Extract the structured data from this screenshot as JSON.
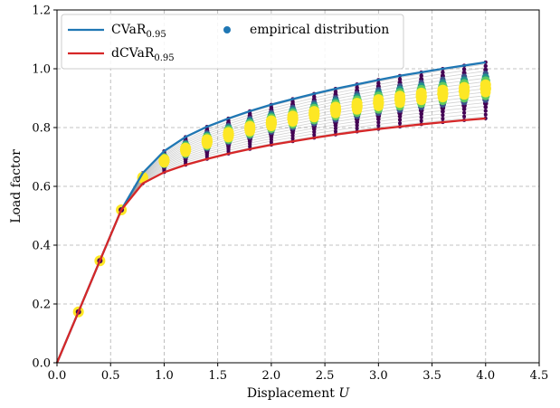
{
  "chart_data": {
    "type": "line",
    "xlabel": "Displacement",
    "xlabel_var": "U",
    "ylabel": "Load factor",
    "xlim": [
      0,
      4.5
    ],
    "ylim": [
      0,
      1.2
    ],
    "x_ticks": [
      "0.0",
      "0.5",
      "1.0",
      "1.5",
      "2.0",
      "2.5",
      "3.0",
      "3.5",
      "4.0",
      "4.5"
    ],
    "y_ticks": [
      "0.0",
      "0.2",
      "0.4",
      "0.6",
      "0.8",
      "1.0",
      "1.2"
    ],
    "grid": true,
    "legend_position": "top-left",
    "x": [
      0.0,
      0.2,
      0.4,
      0.6,
      0.8,
      1.0,
      1.2,
      1.4,
      1.6,
      1.8,
      2.0,
      2.2,
      2.4,
      2.6,
      2.8,
      3.0,
      3.2,
      3.4,
      3.6,
      3.8,
      4.0
    ],
    "series": [
      {
        "name": "CVaR",
        "subscript": "0.95",
        "color": "#1f77b4",
        "values": [
          0.0,
          0.173,
          0.347,
          0.52,
          0.645,
          0.72,
          0.768,
          0.803,
          0.831,
          0.856,
          0.878,
          0.897,
          0.915,
          0.932,
          0.947,
          0.962,
          0.976,
          0.988,
          1.0,
          1.011,
          1.022
        ]
      },
      {
        "name": "dCVaR",
        "subscript": "0.95",
        "color": "#d62728",
        "values": [
          0.0,
          0.173,
          0.347,
          0.52,
          0.61,
          0.648,
          0.673,
          0.693,
          0.711,
          0.727,
          0.741,
          0.753,
          0.765,
          0.776,
          0.786,
          0.795,
          0.803,
          0.811,
          0.818,
          0.825,
          0.831
        ]
      }
    ],
    "empirical": {
      "name": "empirical distribution",
      "color": "#1f77b4",
      "colormap": [
        "#440154",
        "#3b528b",
        "#21918c",
        "#5ec962",
        "#fde725"
      ],
      "samples_per_step": 16
    }
  }
}
